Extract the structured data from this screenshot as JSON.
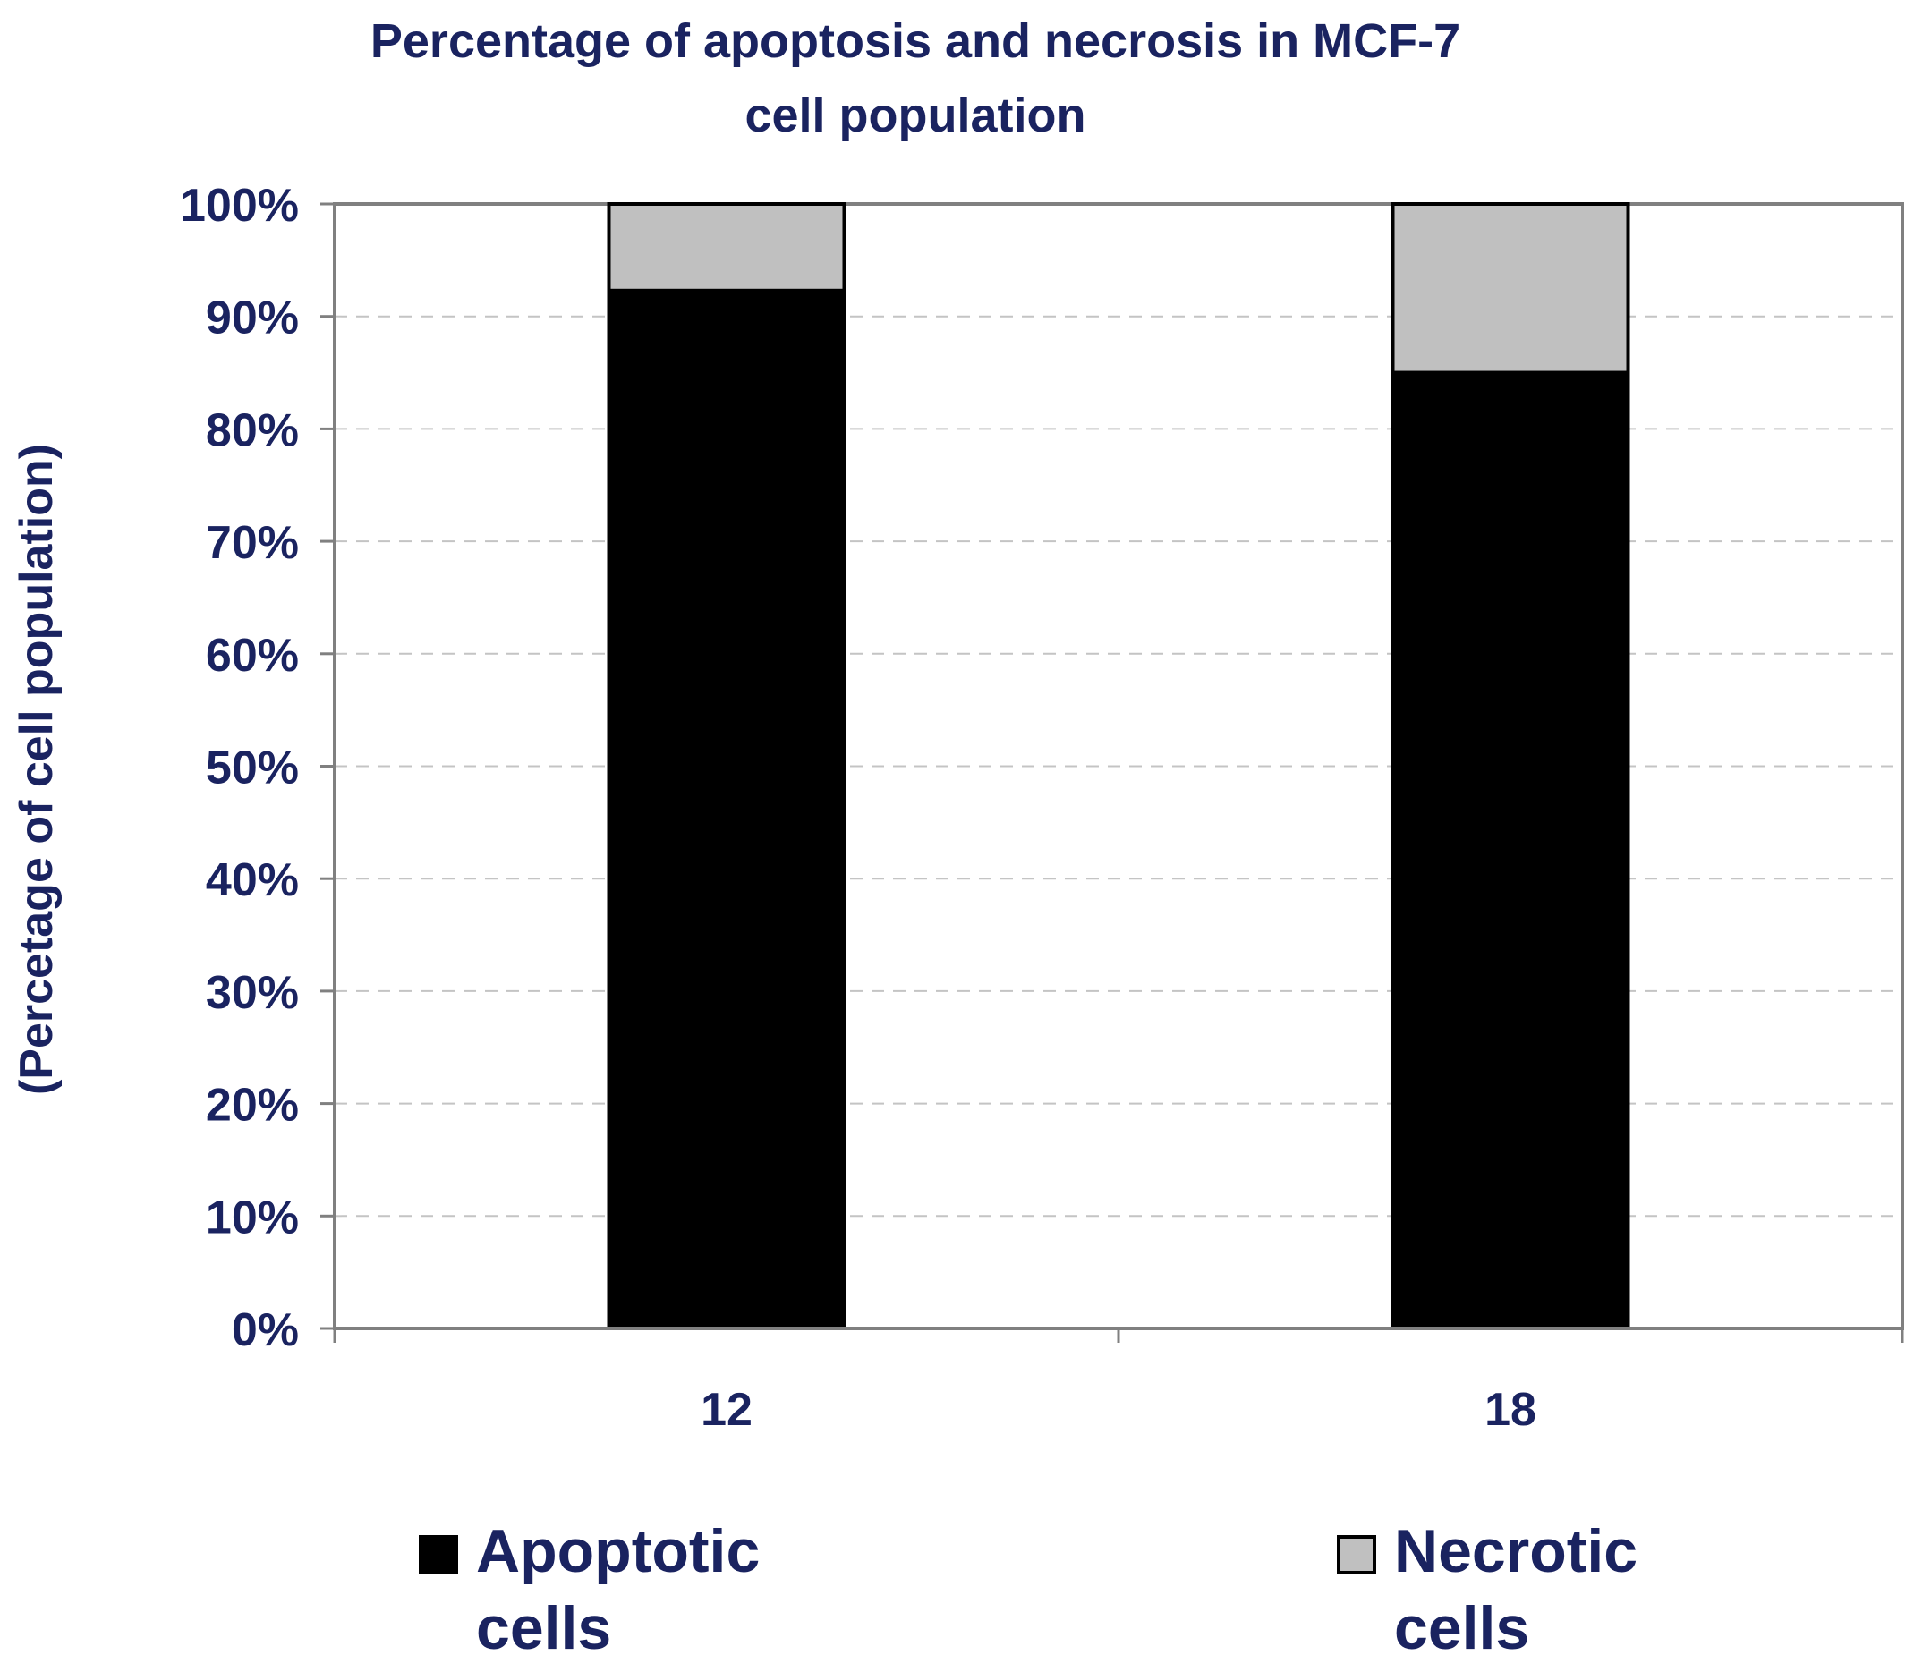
{
  "chart_data": {
    "type": "bar",
    "stacked": true,
    "percent_stacked": true,
    "title_lines": [
      "Percentage of apoptosis and necrosis in MCF-7",
      "cell population"
    ],
    "ylabel": "(Percetage of cell population)",
    "xlabel": "",
    "categories": [
      "12",
      "18"
    ],
    "series": [
      {
        "name": "Apoptotic cells",
        "legend_lines": [
          "Apoptotic",
          "cells"
        ],
        "color": "#000000",
        "values": [
          92.3,
          85.0
        ]
      },
      {
        "name": "Necrotic cells",
        "legend_lines": [
          "Necrotic",
          "cells"
        ],
        "color": "#c0c0c0",
        "values": [
          7.7,
          15.0
        ]
      }
    ],
    "ylim": [
      0,
      100
    ],
    "yticks": [
      0,
      10,
      20,
      30,
      40,
      50,
      60,
      70,
      80,
      90,
      100
    ],
    "ytick_labels": [
      "0%",
      "10%",
      "20%",
      "30%",
      "40%",
      "50%",
      "60%",
      "70%",
      "80%",
      "90%",
      "100%"
    ],
    "grid": true,
    "legend_position": "bottom",
    "text_color": "#1a2360"
  }
}
